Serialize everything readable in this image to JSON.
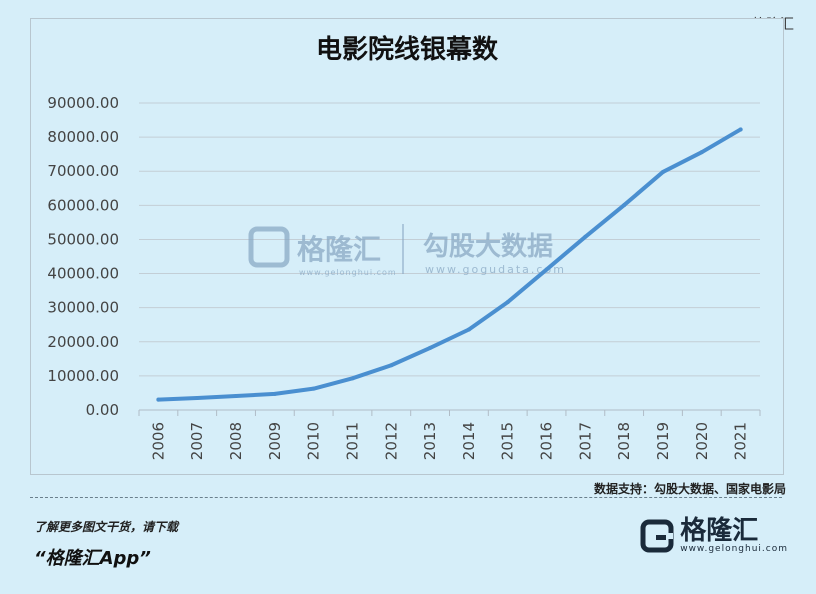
{
  "watermark": {
    "top_right": "@格隆汇",
    "center_brand": "格隆汇",
    "center_brand_url": "www.gelonghui.com",
    "center_data": "勾股大数据",
    "center_data_url": "www.gogudata.com"
  },
  "source": "数据支持：勾股大数据、国家电影局",
  "footer": {
    "promo": "了解更多图文干货，请下载",
    "app_name": "“格隆汇App”",
    "brand_name": "格隆汇",
    "brand_url": "www.gelonghui.com"
  },
  "colors": {
    "line": "#4a8fd0",
    "background": "#d6eef9",
    "grid": "#c3ced6"
  },
  "chart_data": {
    "type": "line",
    "title": "电影院线银幕数",
    "xlabel": "",
    "ylabel": "",
    "x": [
      "2006",
      "2007",
      "2008",
      "2009",
      "2010",
      "2011",
      "2012",
      "2013",
      "2014",
      "2015",
      "2016",
      "2017",
      "2018",
      "2019",
      "2020",
      "2021"
    ],
    "series": [
      {
        "values": [
          3034,
          3527,
          4097,
          4723,
          6256,
          9286,
          13118,
          18195,
          23600,
          31627,
          41179,
          50776,
          60079,
          69787,
          75581,
          82248
        ]
      }
    ],
    "ylim": [
      0,
      90000
    ],
    "yticks": [
      "0.00",
      "10000.00",
      "20000.00",
      "30000.00",
      "40000.00",
      "50000.00",
      "60000.00",
      "70000.00",
      "80000.00",
      "90000.00"
    ],
    "grid": true,
    "legend": "none"
  }
}
